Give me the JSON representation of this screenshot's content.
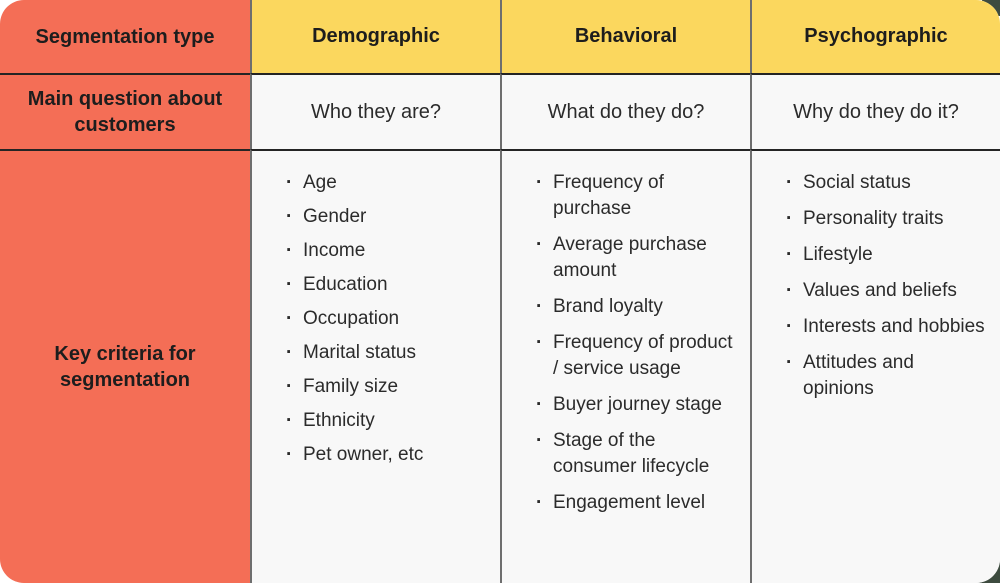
{
  "table": {
    "corner_header": "Segmentation type",
    "row_headers": {
      "question": "Main question about customers",
      "criteria": "Key criteria for segmentation"
    },
    "columns": [
      {
        "label": "Demographic",
        "question": "Who they are?",
        "criteria": [
          "Age",
          "Gender",
          "Income",
          "Education",
          "Occupation",
          "Marital status",
          "Family size",
          "Ethnicity",
          "Pet owner, etc"
        ]
      },
      {
        "label": "Behavioral",
        "question": "What do they do?",
        "criteria": [
          "Frequency of purchase",
          "Average purchase amount",
          "Brand loyalty",
          "Frequency of product / service usage",
          "Buyer journey stage",
          "Stage of the consumer lifecycle",
          "Engagement level"
        ]
      },
      {
        "label": "Psychographic",
        "question": "Why do they do it?",
        "criteria": [
          "Social status",
          "Personality traits",
          "Lifestyle",
          "Values and beliefs",
          "Interests and hobbies",
          "Attitudes and opinions"
        ]
      }
    ],
    "colors": {
      "header_red": "#f46e56",
      "header_yellow": "#fbd75e",
      "cell_background": "#f8f8f8",
      "horizontal_border": "#242424",
      "vertical_border": "#6e6e6e",
      "text": "#1d1d1d",
      "corner_accent_green": "#3d4b3f"
    }
  }
}
